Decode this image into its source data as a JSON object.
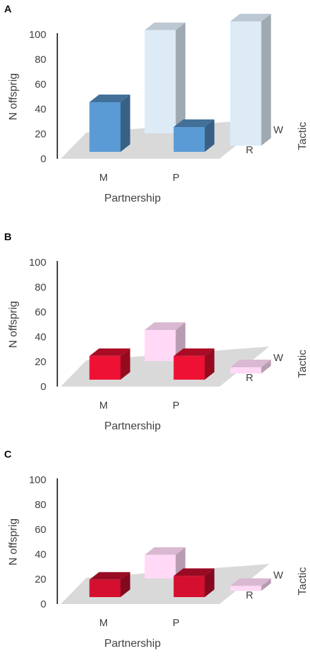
{
  "chart_data": [
    {
      "panel_label": "A",
      "type": "bar",
      "subtype": "3d-column",
      "categories": [
        "M",
        "P"
      ],
      "depth_categories": [
        "R",
        "W"
      ],
      "series": [
        {
          "name": "R",
          "values": [
            40,
            20
          ],
          "color": "#5b9bd5"
        },
        {
          "name": "W",
          "values": [
            83,
            100
          ],
          "color": "#ddebf7"
        }
      ],
      "yticks": [
        "0",
        "20",
        "40",
        "60",
        "80",
        "100"
      ],
      "ylim": [
        0,
        100
      ],
      "ylabel": "N offsprig",
      "xlabel": "Partnership",
      "zlabel": "Tactic"
    },
    {
      "panel_label": "B",
      "type": "bar",
      "subtype": "3d-column",
      "categories": [
        "M",
        "P"
      ],
      "depth_categories": [
        "R",
        "W"
      ],
      "series": [
        {
          "name": "R",
          "values": [
            19,
            19
          ],
          "color": "#ee1133"
        },
        {
          "name": "W",
          "values": [
            25,
            5
          ],
          "color": "#ffd9f6"
        }
      ],
      "yticks": [
        "0",
        "20",
        "40",
        "60",
        "80",
        "100"
      ],
      "ylim": [
        0,
        100
      ],
      "ylabel": "N offsprig",
      "xlabel": "Partnership",
      "zlabel": "Tactic"
    },
    {
      "panel_label": "C",
      "type": "bar",
      "subtype": "3d-column",
      "categories": [
        "M",
        "P"
      ],
      "depth_categories": [
        "R",
        "W"
      ],
      "series": [
        {
          "name": "R",
          "values": [
            14,
            17
          ],
          "color": "#d40f30"
        },
        {
          "name": "W",
          "values": [
            19,
            4
          ],
          "color": "#ffd9f6"
        }
      ],
      "yticks": [
        "0",
        "20",
        "40",
        "60",
        "80",
        "100"
      ],
      "ylim": [
        0,
        100
      ],
      "ylabel": "N offsprig",
      "xlabel": "Partnership",
      "zlabel": "Tactic"
    }
  ]
}
